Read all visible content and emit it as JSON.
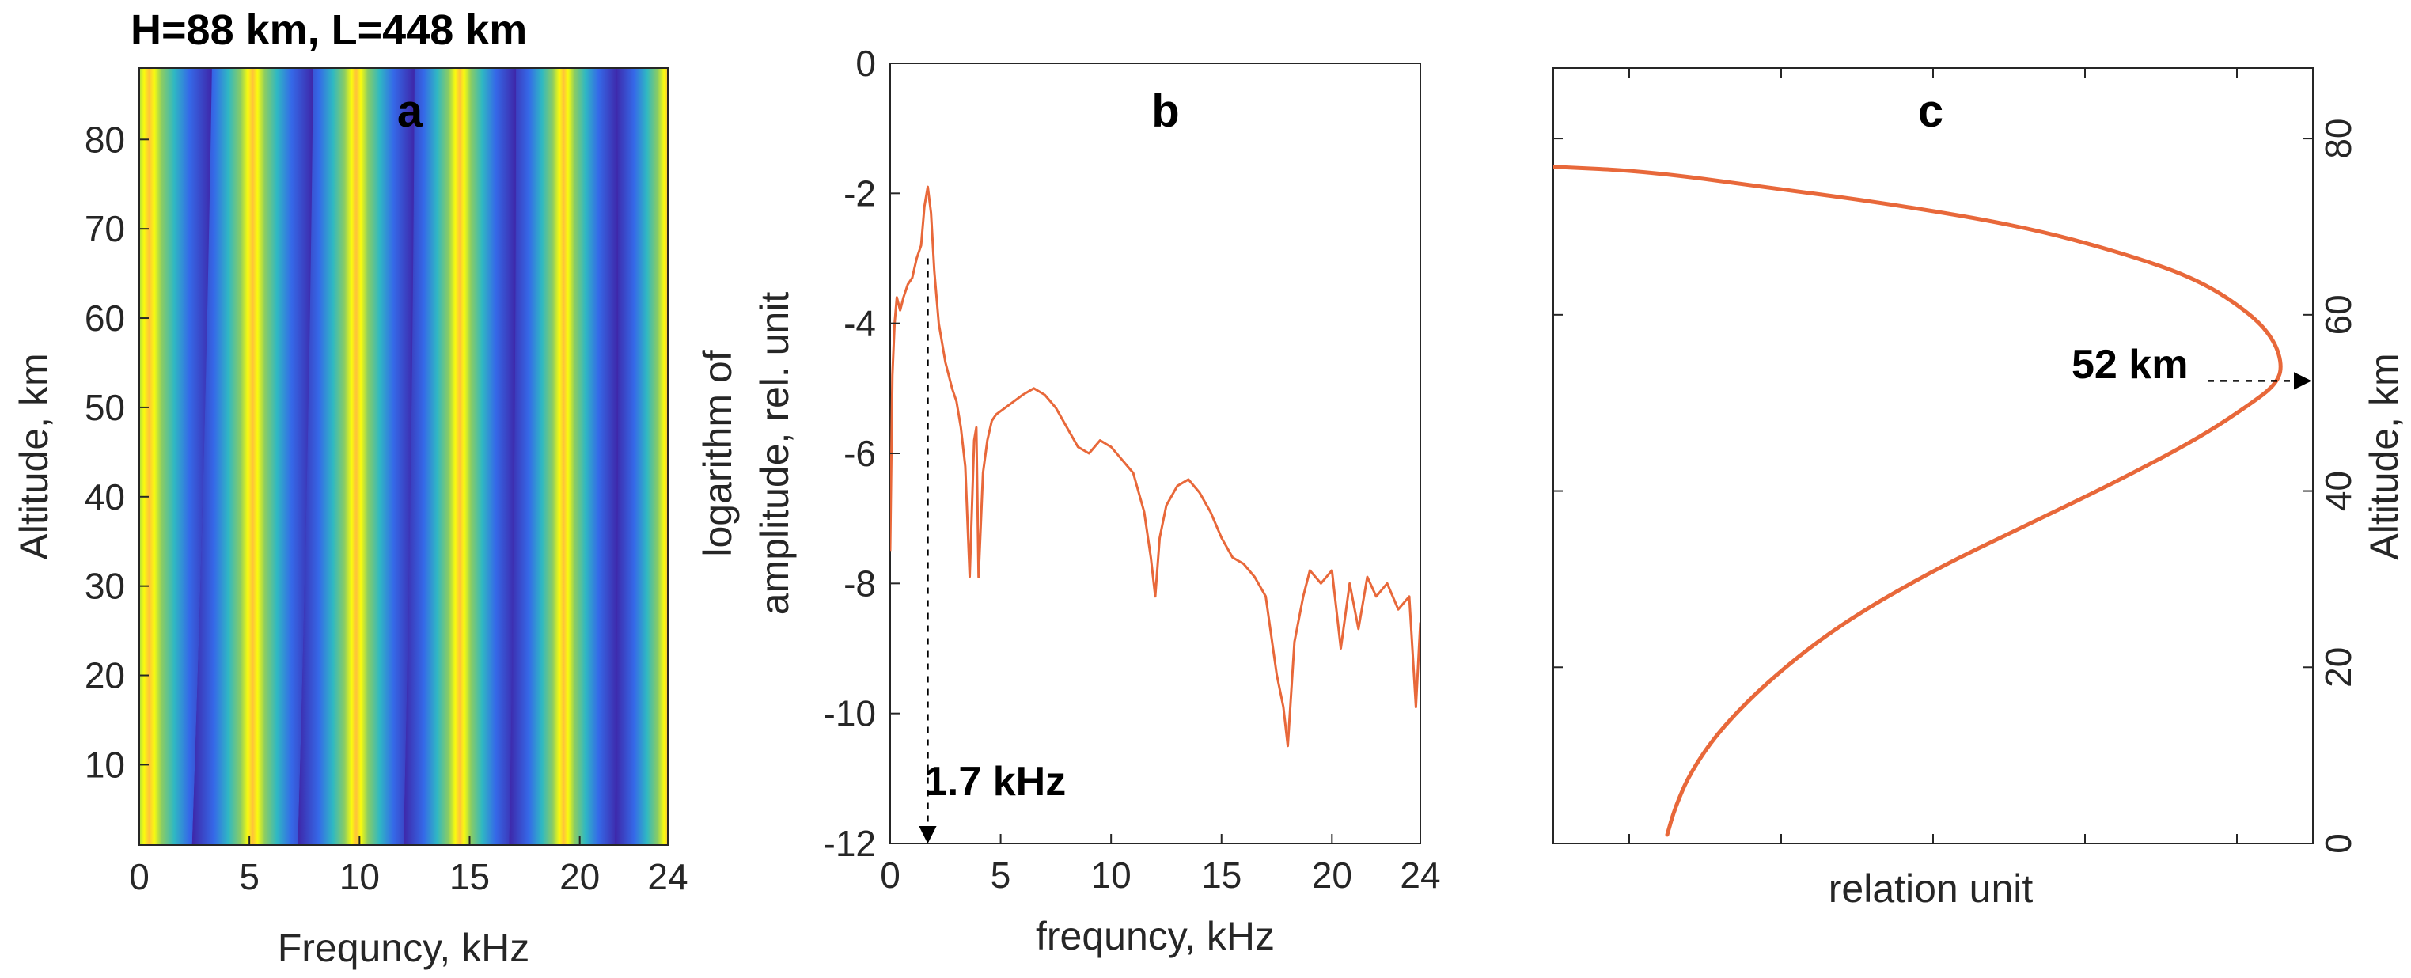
{
  "panels": {
    "a": {
      "title": "H=88 km, L=448 km",
      "panel_label": "a",
      "xlabel": "Frequncy, kHz",
      "ylabel": "Altitude, km"
    },
    "b": {
      "panel_label": "b",
      "xlabel": "frequncy, kHz",
      "ylabel_line1": "logarithm of",
      "ylabel_line2": "amplitude, rel. unit",
      "annotation": "1.7 kHz"
    },
    "c": {
      "panel_label": "c",
      "xlabel": "relation unit",
      "ylabel": "Altitude, km",
      "annotation": "52 km"
    }
  },
  "chart_data": [
    {
      "type": "heatmap",
      "title": "H=88 km, L=448 km",
      "xlabel": "Frequncy, kHz",
      "ylabel": "Altitude, km",
      "xlim": [
        0,
        24
      ],
      "ylim": [
        1,
        88
      ],
      "xticks": [
        0,
        5,
        10,
        15,
        20,
        24
      ],
      "yticks": [
        10,
        20,
        30,
        40,
        50,
        60,
        70,
        80
      ],
      "colormap": "parula",
      "colors": {
        "low": "#3e26a8",
        "mid": "#2fb8c3",
        "high": "#f9fb0e",
        "peak_alt": "#ffc23b"
      },
      "stripe_period_khz": {
        "at_88km": 4.6,
        "at_1km": 4.8
      },
      "yellow_band_centers_khz": [
        {
          "at_88km": 1.0,
          "at_1km": 0.0
        },
        {
          "at_88km": 5.6,
          "at_1km": 4.8
        },
        {
          "at_88km": 10.2,
          "at_1km": 9.6
        },
        {
          "at_88km": 14.8,
          "at_1km": 14.4
        },
        {
          "at_88km": 19.4,
          "at_1km": 19.2
        },
        {
          "at_88km": 24.0,
          "at_1km": 24.0
        }
      ]
    },
    {
      "type": "line",
      "xlabel": "frequncy, kHz",
      "ylabel": "logarithm of amplitude, rel. unit",
      "xlim": [
        0,
        24
      ],
      "ylim": [
        -12,
        0
      ],
      "xticks": [
        0,
        5,
        10,
        15,
        20,
        24
      ],
      "yticks": [
        0,
        -2,
        -4,
        -6,
        -8,
        -10,
        -12
      ],
      "series": [
        {
          "color": "#e8683a",
          "x": [
            0,
            0.1,
            0.2,
            0.3,
            0.45,
            0.6,
            0.8,
            1.0,
            1.2,
            1.4,
            1.55,
            1.7,
            1.85,
            2.0,
            2.2,
            2.5,
            2.8,
            3.0,
            3.2,
            3.4,
            3.6,
            3.8,
            3.9,
            4.0,
            4.2,
            4.4,
            4.6,
            4.8,
            5.2,
            5.6,
            6.0,
            6.5,
            7.0,
            7.5,
            8.0,
            8.5,
            9.0,
            9.5,
            10.0,
            10.5,
            11.0,
            11.5,
            11.8,
            12.0,
            12.2,
            12.5,
            13.0,
            13.5,
            14.0,
            14.5,
            15.0,
            15.5,
            16.0,
            16.5,
            17.0,
            17.5,
            17.8,
            18.0,
            18.3,
            18.7,
            19.0,
            19.5,
            20.0,
            20.4,
            20.8,
            21.2,
            21.6,
            22.0,
            22.5,
            23.0,
            23.5,
            23.8,
            24.0
          ],
          "y": [
            -7.5,
            -4.8,
            -4.0,
            -3.6,
            -3.8,
            -3.6,
            -3.4,
            -3.3,
            -3.0,
            -2.8,
            -2.2,
            -1.9,
            -2.3,
            -3.2,
            -4.0,
            -4.6,
            -5.0,
            -5.2,
            -5.6,
            -6.2,
            -7.9,
            -5.8,
            -5.6,
            -7.9,
            -6.3,
            -5.8,
            -5.5,
            -5.4,
            -5.3,
            -5.2,
            -5.1,
            -5.0,
            -5.1,
            -5.3,
            -5.6,
            -5.9,
            -6.0,
            -5.8,
            -5.9,
            -6.1,
            -6.3,
            -6.9,
            -7.6,
            -8.2,
            -7.3,
            -6.8,
            -6.5,
            -6.4,
            -6.6,
            -6.9,
            -7.3,
            -7.6,
            -7.7,
            -7.9,
            -8.2,
            -9.4,
            -9.9,
            -10.5,
            -8.9,
            -8.2,
            -7.8,
            -8.0,
            -7.8,
            -9.0,
            -8.0,
            -8.7,
            -7.9,
            -8.2,
            -8.0,
            -8.4,
            -8.2,
            -9.9,
            -8.6
          ]
        }
      ],
      "annotation": {
        "text": "1.7 kHz",
        "x": 1.7,
        "y_from": -3.0,
        "y_to": -12
      }
    },
    {
      "type": "line",
      "xlabel": "relation unit",
      "ylabel": "Altitude, km",
      "y_axis_side": "right",
      "xlim": [
        0,
        1
      ],
      "xticks_labeled": false,
      "ylim": [
        0,
        88
      ],
      "yticks": [
        0,
        20,
        40,
        60,
        80
      ],
      "series": [
        {
          "color": "#e8683a",
          "x": [
            0.15,
            0.16,
            0.18,
            0.22,
            0.29,
            0.38,
            0.5,
            0.62,
            0.74,
            0.85,
            0.92,
            0.95,
            0.96,
            0.95,
            0.92,
            0.85,
            0.75,
            0.62,
            0.45,
            0.28,
            0.12,
            0.0
          ],
          "y": [
            1,
            4,
            8,
            13,
            19,
            25,
            31,
            36,
            41,
            46,
            50,
            52,
            54,
            57,
            60,
            64,
            67,
            70,
            72.5,
            74.5,
            76.3,
            76.8
          ]
        }
      ],
      "annotation": {
        "text": "52 km",
        "y": 52.5
      }
    }
  ]
}
